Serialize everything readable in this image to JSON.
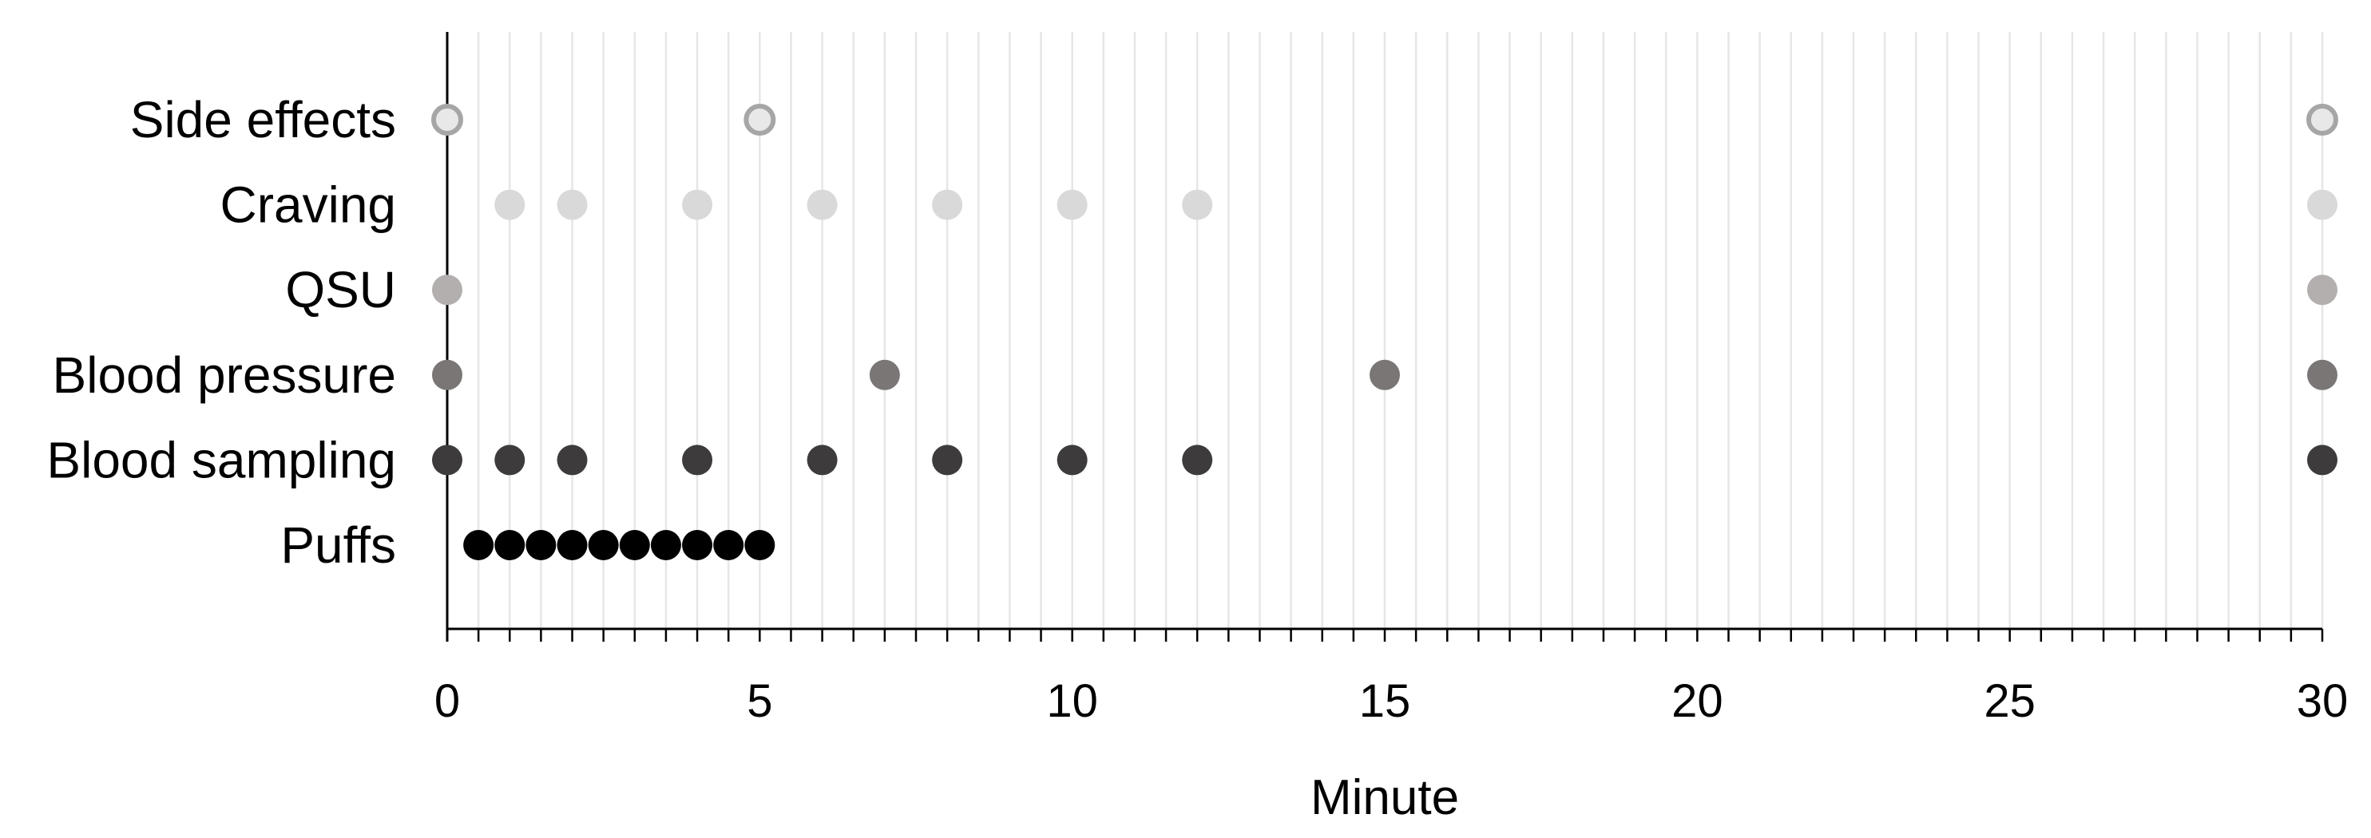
{
  "chart_data": {
    "type": "scatter",
    "title": "",
    "xlabel": "Minute",
    "ylabel": "",
    "xlim": [
      0,
      30
    ],
    "x_major_ticks": [
      0,
      5,
      10,
      15,
      20,
      25,
      30
    ],
    "x_minor_step": 0.5,
    "grid": "vertical minor gridlines every 0.5 minute",
    "legend": "none",
    "categories": [
      "Side effects",
      "Craving",
      "QSU",
      "Blood pressure",
      "Blood sampling",
      "Puffs"
    ],
    "series": [
      {
        "category": "Side effects",
        "style": "hollow",
        "fill": "#e8e8e8",
        "stroke": "#a6a6a6",
        "x": [
          0,
          5,
          30
        ]
      },
      {
        "category": "Craving",
        "style": "filled",
        "fill": "#d9d9d9",
        "x": [
          1,
          2,
          4,
          6,
          8,
          10,
          12,
          30
        ]
      },
      {
        "category": "QSU",
        "style": "filled",
        "fill": "#b3afaf",
        "x": [
          0,
          30
        ]
      },
      {
        "category": "Blood pressure",
        "style": "filled",
        "fill": "#7a7676",
        "x": [
          0,
          7,
          15,
          30
        ]
      },
      {
        "category": "Blood sampling",
        "style": "filled",
        "fill": "#3d3b3b",
        "x": [
          0,
          1,
          2,
          4,
          6,
          8,
          10,
          12,
          30
        ]
      },
      {
        "category": "Puffs",
        "style": "filled",
        "fill": "#000000",
        "x": [
          0.5,
          1,
          1.5,
          2,
          2.5,
          3,
          3.5,
          4,
          4.5,
          5
        ]
      }
    ]
  }
}
